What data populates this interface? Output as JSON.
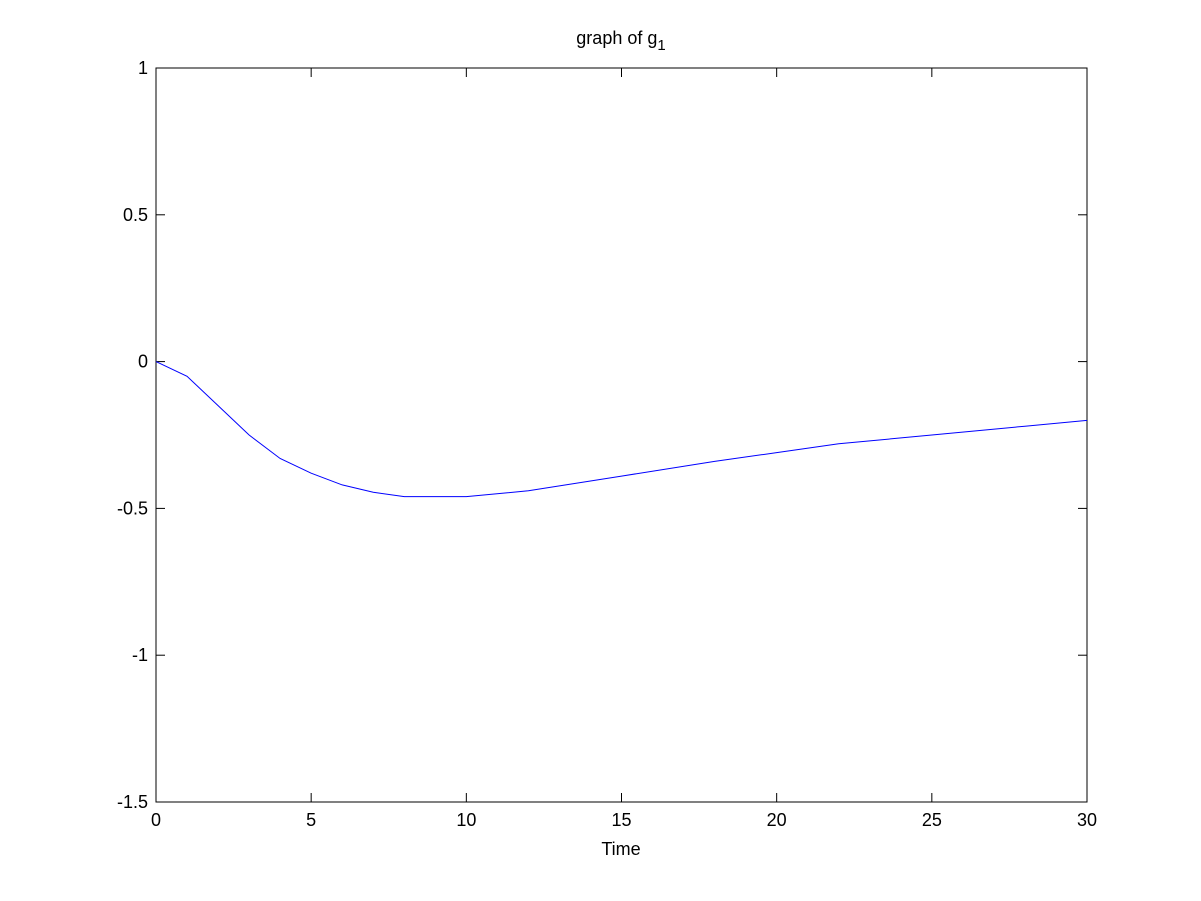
{
  "chart_data": {
    "type": "line",
    "title": "graph of g",
    "title_subscript": "1",
    "xlabel": "Time",
    "x": [
      0,
      1,
      2,
      3,
      4,
      5,
      6,
      7,
      8,
      9,
      10,
      12,
      15,
      18,
      20,
      22,
      25,
      28,
      30
    ],
    "series": [
      {
        "name": "g1",
        "color": "#0000ff",
        "values": [
          0,
          -0.05,
          -0.15,
          -0.25,
          -0.33,
          -0.38,
          -0.42,
          -0.445,
          -0.46,
          -0.46,
          -0.46,
          -0.44,
          -0.39,
          -0.34,
          -0.31,
          -0.28,
          -0.25,
          -0.22,
          -0.2
        ]
      }
    ],
    "xlim": [
      0,
      30
    ],
    "xticks": [
      0,
      5,
      10,
      15,
      20,
      25,
      30
    ],
    "ylim": [
      -1.5,
      1
    ],
    "yticks": [
      -1.5,
      -1,
      -0.5,
      0,
      0.5,
      1
    ],
    "grid": false
  }
}
